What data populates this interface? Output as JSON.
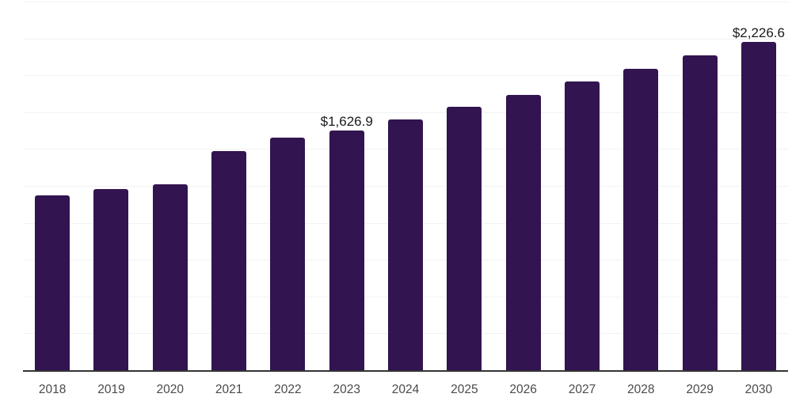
{
  "chart_data": {
    "type": "bar",
    "title": "",
    "xlabel": "",
    "ylabel": "",
    "categories": [
      "2018",
      "2019",
      "2020",
      "2021",
      "2022",
      "2023",
      "2024",
      "2025",
      "2026",
      "2027",
      "2028",
      "2029",
      "2030"
    ],
    "values": [
      1185,
      1230,
      1262,
      1485,
      1575,
      1626.9,
      1702,
      1786,
      1867,
      1958,
      2045,
      2136,
      2226.6
    ],
    "value_labels": [
      {
        "category": "2023",
        "text": "$1,626.9"
      },
      {
        "category": "2030",
        "text": "$2,226.6"
      }
    ],
    "ylim": [
      0,
      2500
    ],
    "gridline_step": 250,
    "grid": "horizontal",
    "legend": "none"
  },
  "colors": {
    "bar": "#321450",
    "axis_line": "#333333",
    "gridline": "#f2f2f2",
    "value_label_text": "#1a1a1a",
    "tick_label_text": "#4a4a4a",
    "background": "#ffffff"
  }
}
